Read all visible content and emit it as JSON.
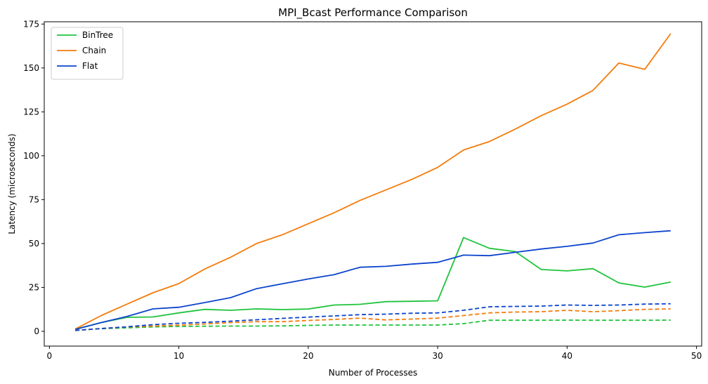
{
  "chart_data": {
    "type": "line",
    "title": "MPI_Bcast Performance Comparison",
    "xlabel": "Number of Processes",
    "ylabel": "Latency (microseconds)",
    "xlim": [
      -0.4,
      50.4
    ],
    "ylim": [
      -8.4,
      176.3
    ],
    "xticks": [
      0,
      10,
      20,
      30,
      40,
      50
    ],
    "yticks": [
      0,
      25,
      50,
      75,
      100,
      125,
      150,
      175
    ],
    "grid": false,
    "legend": {
      "placement": "top-left"
    },
    "x": [
      2,
      4,
      6,
      8,
      10,
      12,
      14,
      16,
      18,
      20,
      22,
      24,
      26,
      28,
      30,
      32,
      34,
      36,
      38,
      40,
      42,
      44,
      46,
      48
    ],
    "series": [
      {
        "name": "BinTree",
        "color": "#1fc43c",
        "style": "solid",
        "values": [
          1.2,
          5.0,
          8.0,
          8.2,
          10.5,
          12.5,
          12.0,
          12.8,
          12.4,
          12.7,
          15.0,
          15.4,
          16.9,
          17.1,
          17.4,
          53.4,
          47.3,
          45.4,
          35.2,
          34.4,
          35.7,
          27.6,
          25.2,
          28.1
        ]
      },
      {
        "name": "Chain",
        "color": "#f47c0c",
        "style": "solid",
        "values": [
          1.3,
          9.0,
          15.5,
          22.0,
          27.2,
          35.5,
          42.2,
          50.0,
          55.0,
          61.3,
          67.5,
          74.6,
          80.5,
          86.5,
          93.4,
          103.3,
          108.1,
          115.2,
          122.8,
          129.4,
          137.2,
          152.8,
          149.2,
          169.5
        ]
      },
      {
        "name": "Flat",
        "color": "#0c44cc",
        "style": "solid",
        "values": [
          1.1,
          5.0,
          8.5,
          12.8,
          13.7,
          16.4,
          19.2,
          24.3,
          27.1,
          29.8,
          32.3,
          36.5,
          37.0,
          38.3,
          39.3,
          43.4,
          43.1,
          45.0,
          46.9,
          48.4,
          50.3,
          55.0,
          56.2,
          57.3
        ]
      },
      {
        "name": "",
        "color": "#1fc43c",
        "style": "dashed",
        "values": [
          0.5,
          1.5,
          2.0,
          2.5,
          2.8,
          2.9,
          3.0,
          3.0,
          3.1,
          3.4,
          3.6,
          3.6,
          3.6,
          3.6,
          3.6,
          4.4,
          6.3,
          6.3,
          6.3,
          6.4,
          6.3,
          6.3,
          6.3,
          6.4
        ]
      },
      {
        "name": "",
        "color": "#f47c0c",
        "style": "dashed",
        "values": [
          0.5,
          1.6,
          2.5,
          3.0,
          3.5,
          4.2,
          5.0,
          5.5,
          5.5,
          6.2,
          6.8,
          7.5,
          6.5,
          7.0,
          7.5,
          9.0,
          10.5,
          11.0,
          11.2,
          12.0,
          11.2,
          11.8,
          12.5,
          12.8
        ]
      },
      {
        "name": "",
        "color": "#0c44cc",
        "style": "dashed",
        "values": [
          0.5,
          1.6,
          2.6,
          3.8,
          4.6,
          5.1,
          5.8,
          6.6,
          7.4,
          8.1,
          8.8,
          9.5,
          9.8,
          10.3,
          10.5,
          12.0,
          14.0,
          14.2,
          14.4,
          15.0,
          14.8,
          15.0,
          15.5,
          15.7
        ]
      }
    ]
  }
}
